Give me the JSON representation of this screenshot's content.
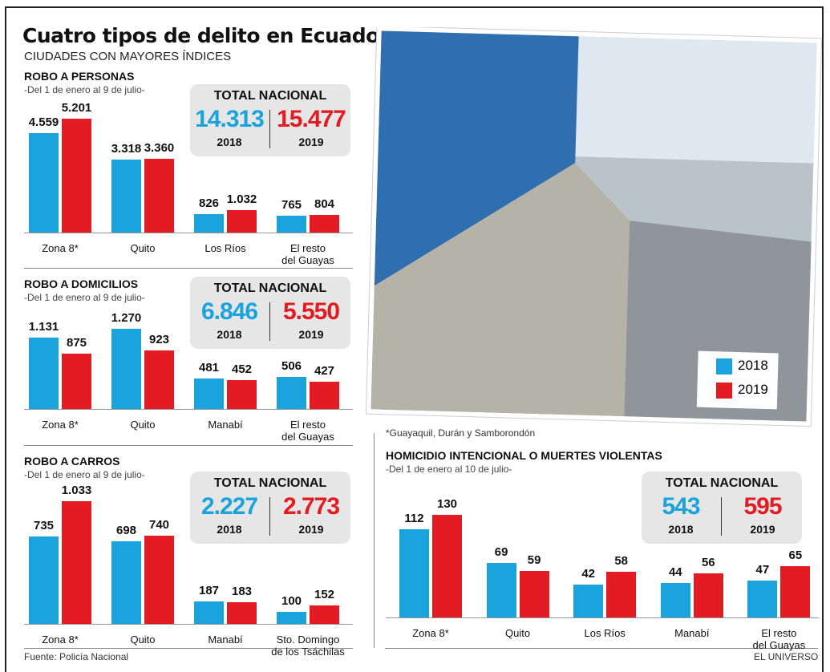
{
  "title": "Cuatro tipos de delito en Ecuador",
  "subtitle": "CIUDADES CON MAYORES ÍNDICES",
  "footnote": "*Guayaquil, Durán y Samborondón",
  "source": "Fuente: Policía Nacional",
  "credit": "EL UNIVERSO",
  "chart_data": [
    {
      "type": "bar",
      "title": "ROBO A PERSONAS",
      "subtitle": "-Del 1 de enero al 9 de julio-",
      "categories": [
        "Zona 8*",
        "Quito",
        "Los Ríos",
        "El resto del Guayas"
      ],
      "series": [
        {
          "name": "2018",
          "color": "#1aa3dc",
          "values": [
            4559,
            3318,
            826,
            765
          ],
          "value_labels": [
            "4.559",
            "3.318",
            "826",
            "765"
          ]
        },
        {
          "name": "2019",
          "color": "#e31b23",
          "values": [
            5201,
            3360,
            1032,
            804
          ],
          "value_labels": [
            "5.201",
            "3.360",
            "1.032",
            "804"
          ]
        }
      ],
      "totals": {
        "label": "TOTAL NACIONAL",
        "values": [
          14313,
          15477
        ],
        "value_labels": [
          "14.313",
          "15.477"
        ]
      }
    },
    {
      "type": "bar",
      "title": "ROBO A DOMICILIOS",
      "subtitle": "-Del 1 de enero al 9 de julio-",
      "categories": [
        "Zona 8*",
        "Quito",
        "Manabí",
        "El resto del Guayas"
      ],
      "series": [
        {
          "name": "2018",
          "color": "#1aa3dc",
          "values": [
            1131,
            1270,
            481,
            506
          ],
          "value_labels": [
            "1.131",
            "1.270",
            "481",
            "506"
          ]
        },
        {
          "name": "2019",
          "color": "#e31b23",
          "values": [
            875,
            923,
            452,
            427
          ],
          "value_labels": [
            "875",
            "923",
            "452",
            "427"
          ]
        }
      ],
      "totals": {
        "label": "TOTAL NACIONAL",
        "values": [
          6846,
          5550
        ],
        "value_labels": [
          "6.846",
          "5.550"
        ]
      }
    },
    {
      "type": "bar",
      "title": "ROBO A CARROS",
      "subtitle": "-Del 1 de enero al 9 de julio-",
      "categories": [
        "Zona 8*",
        "Quito",
        "Manabí",
        "Sto. Domingo de los Tsáchilas"
      ],
      "series": [
        {
          "name": "2018",
          "color": "#1aa3dc",
          "values": [
            735,
            698,
            187,
            100
          ],
          "value_labels": [
            "735",
            "698",
            "187",
            "100"
          ]
        },
        {
          "name": "2019",
          "color": "#e31b23",
          "values": [
            1033,
            740,
            183,
            152
          ],
          "value_labels": [
            "1.033",
            "740",
            "183",
            "152"
          ]
        }
      ],
      "totals": {
        "label": "TOTAL NACIONAL",
        "values": [
          2227,
          2773
        ],
        "value_labels": [
          "2.227",
          "2.773"
        ]
      }
    },
    {
      "type": "bar",
      "title": "HOMICIDIO INTENCIONAL O MUERTES VIOLENTAS",
      "subtitle": "-Del 1 de enero al 10 de julio-",
      "categories": [
        "Zona 8*",
        "Quito",
        "Los Ríos",
        "Manabí",
        "El resto del Guayas"
      ],
      "series": [
        {
          "name": "2018",
          "color": "#1aa3dc",
          "values": [
            112,
            69,
            42,
            44,
            47
          ]
        },
        {
          "name": "2019",
          "color": "#e31b23",
          "values": [
            130,
            59,
            58,
            56,
            65
          ]
        }
      ],
      "totals": {
        "label": "TOTAL NACIONAL",
        "values": [
          543,
          595
        ]
      }
    }
  ]
}
